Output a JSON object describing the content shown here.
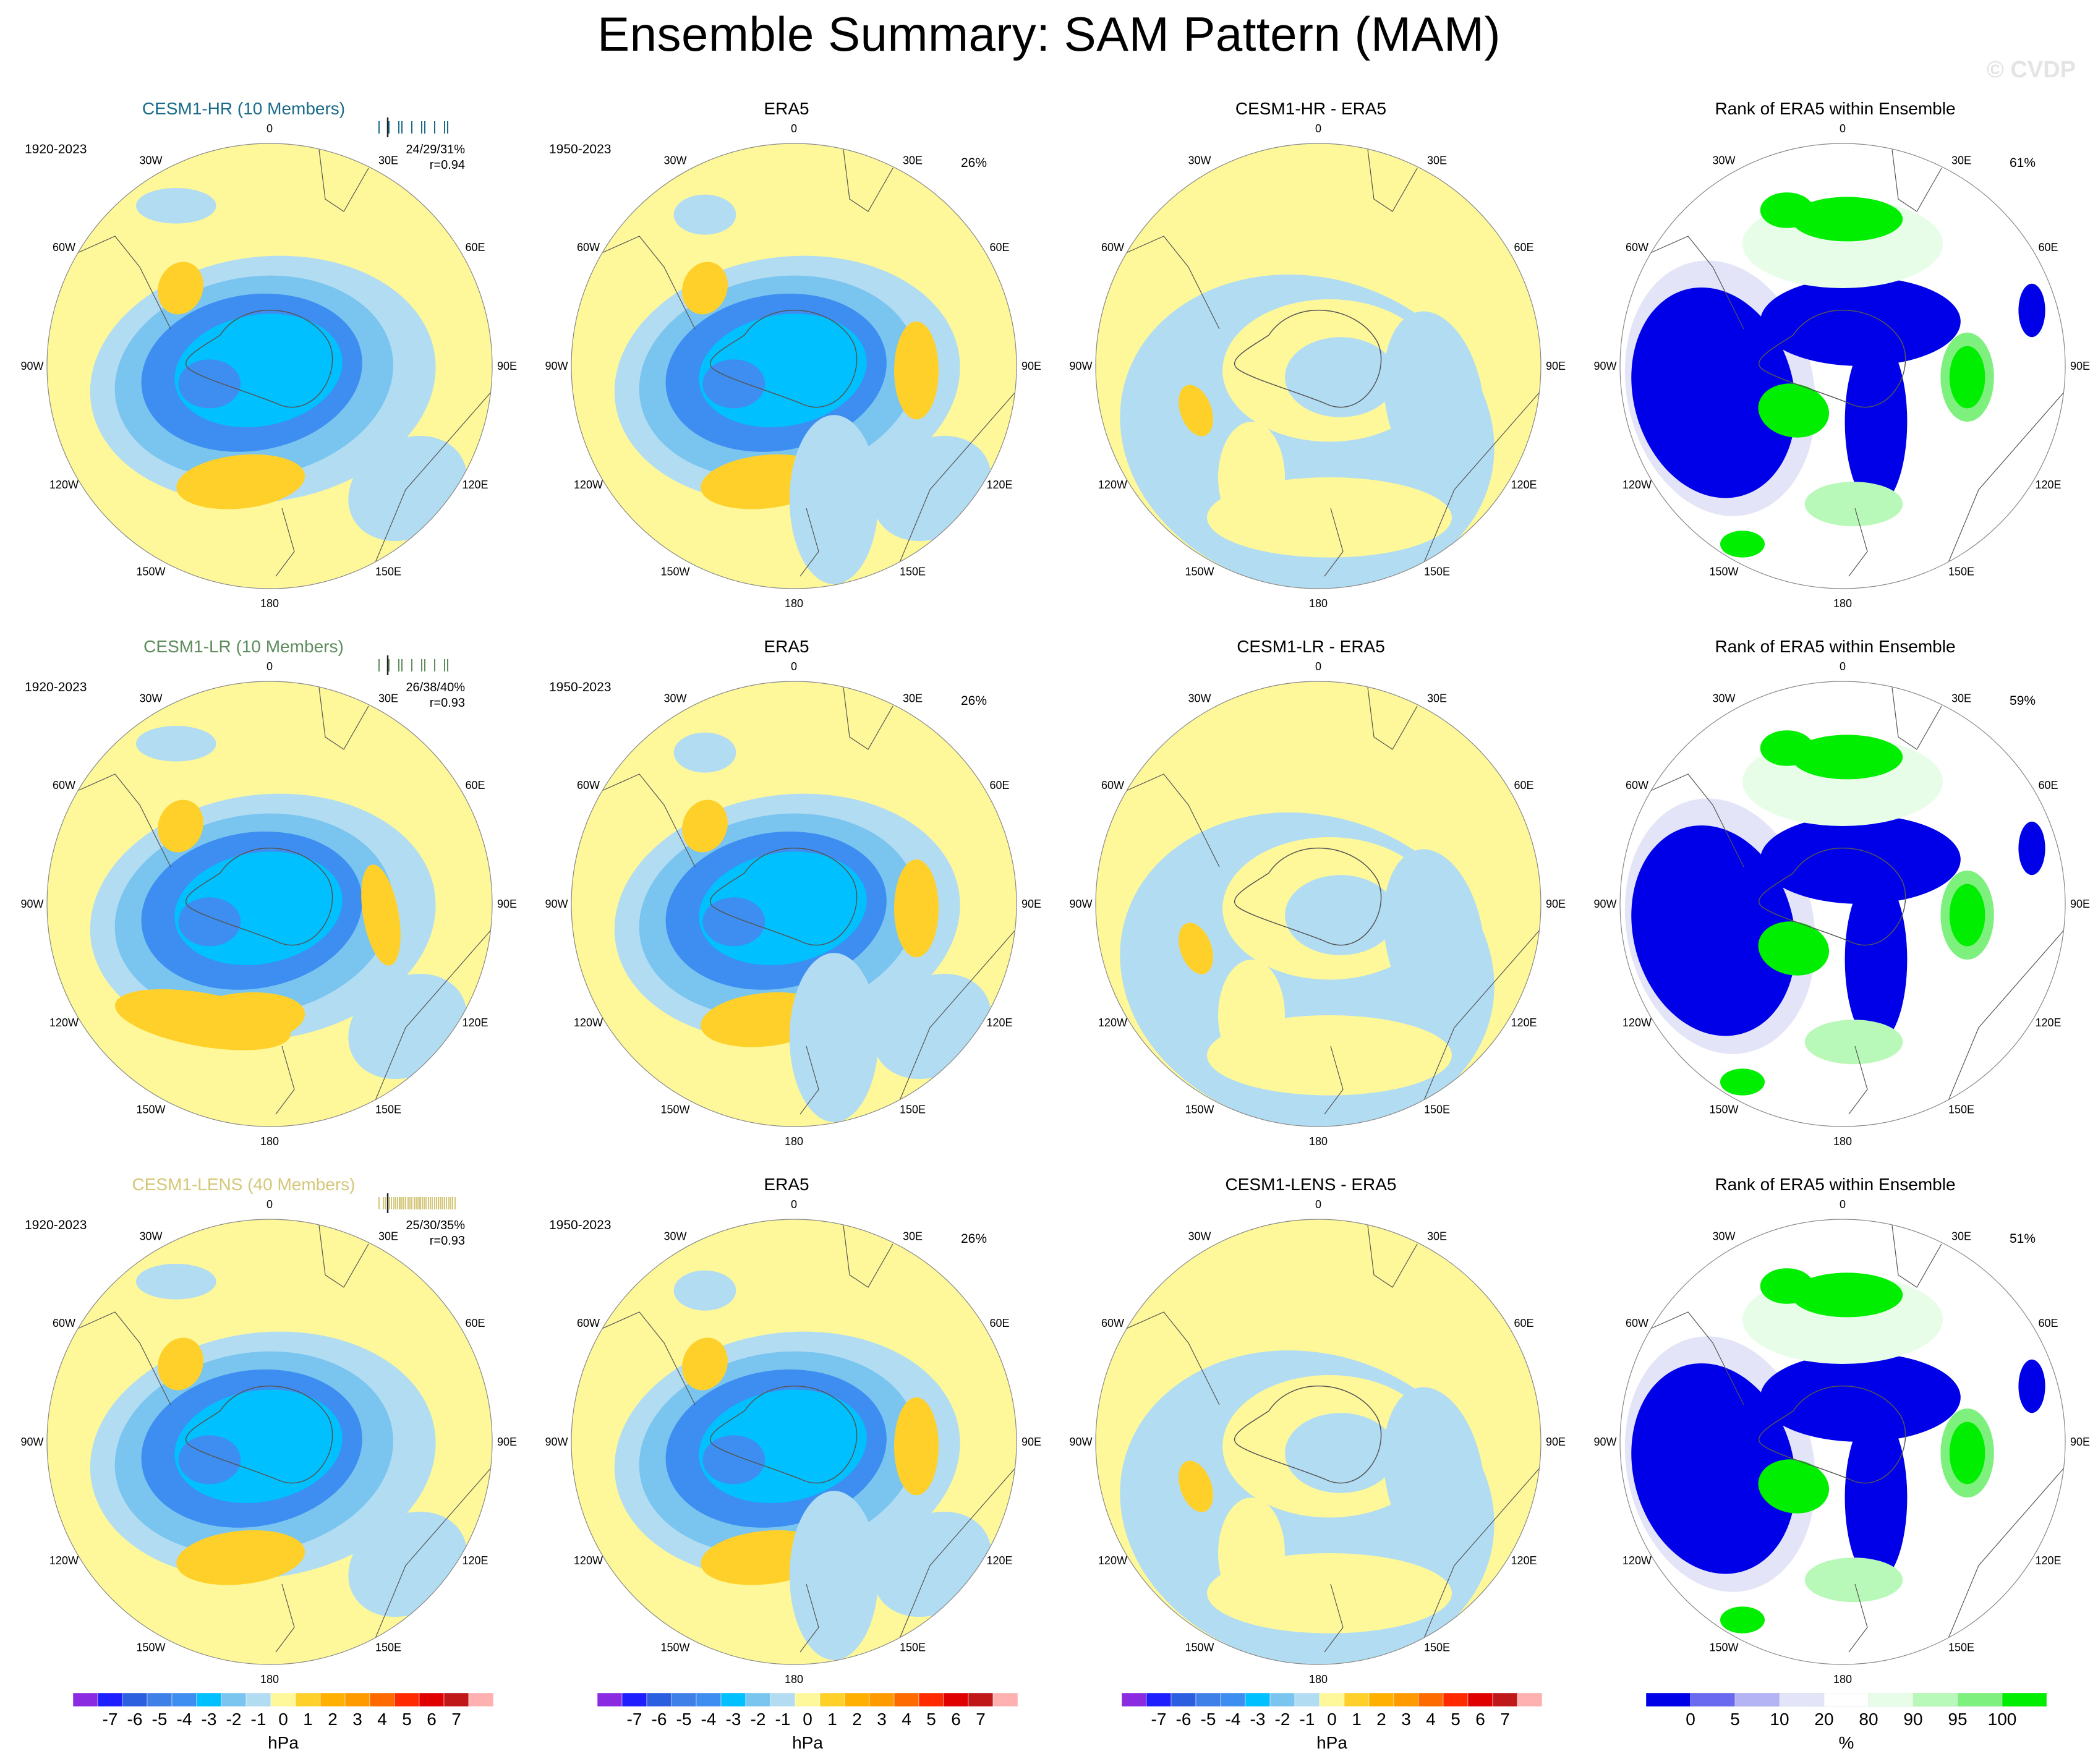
{
  "title": "Ensemble Summary: SAM Pattern (MAM)",
  "watermark": "© CVDP",
  "longitude_labels": [
    "0",
    "30E",
    "60E",
    "90E",
    "120E",
    "150E",
    "180",
    "150W",
    "120W",
    "90W",
    "60W",
    "30W"
  ],
  "colors": {
    "c_neg7": "#8a2be2",
    "c_neg6": "#1e1eff",
    "c_neg5": "#2b5fe0",
    "c_neg4": "#3f7fe8",
    "c_neg3": "#3d8ef0",
    "c_neg2": "#00c0ff",
    "c_neg1": "#7ac4f0",
    "c_neg0": "#b2dcf2",
    "c_pos0": "#fff89a",
    "c_pos1": "#ffd02a",
    "c_pos2": "#ffb000",
    "c_pos3": "#ff9a00",
    "c_pos4": "#ff6a00",
    "c_pos5": "#ff2a00",
    "c_pos6": "#e00000",
    "c_pos7": "#c01818",
    "c_pos8": "#ffb0b0",
    "r_0": "#0000e8",
    "r_5": "#6a6af0",
    "r_10": "#b4b4f4",
    "r_20": "#e4e4f8",
    "r_mid": "#ffffff",
    "r_80": "#e8fde8",
    "r_90": "#b8f8b8",
    "r_95": "#7ef07e",
    "r_100": "#00ee00",
    "hr_color": "#1a6a8a",
    "lr_color": "#5e8c5e",
    "lens_color": "#d4c77a"
  },
  "colorbar_hpa": {
    "labels": [
      "-7",
      "-6",
      "-5",
      "-4",
      "-3",
      "-2",
      "-1",
      "0",
      "1",
      "2",
      "3",
      "4",
      "5",
      "6",
      "7"
    ],
    "unit": "hPa"
  },
  "colorbar_rank": {
    "labels": [
      "0",
      "5",
      "10",
      "20",
      "80",
      "90",
      "95",
      "100"
    ],
    "unit": "%"
  },
  "rows": [
    {
      "model": "CESM1-HR (10 Members)",
      "model_period": "1920-2023",
      "stats_pct": "24/29/31%",
      "stats_r": "r=0.94",
      "obs_title": "ERA5",
      "obs_period": "1950-2023",
      "obs_pct": "26%",
      "diff_title": "CESM1-HR - ERA5",
      "rank_title": "Rank of ERA5 within Ensemble",
      "rank_pct": "61%"
    },
    {
      "model": "CESM1-LR (10 Members)",
      "model_period": "1920-2023",
      "stats_pct": "26/38/40%",
      "stats_r": "r=0.93",
      "obs_title": "ERA5",
      "obs_period": "1950-2023",
      "obs_pct": "26%",
      "diff_title": "CESM1-LR - ERA5",
      "rank_title": "Rank of ERA5 within Ensemble",
      "rank_pct": "59%"
    },
    {
      "model": "CESM1-LENS (40 Members)",
      "model_period": "1920-2023",
      "stats_pct": "25/30/35%",
      "stats_r": "r=0.93",
      "obs_title": "ERA5",
      "obs_period": "1950-2023",
      "obs_pct": "26%",
      "diff_title": "CESM1-LENS - ERA5",
      "rank_title": "Rank of ERA5 within Ensemble",
      "rank_pct": "51%"
    }
  ],
  "chart_data": {
    "type": "polar-stereographic contour maps (3x4 grid)",
    "title": "Ensemble Summary: SAM Pattern (MAM)",
    "variable": "sea level pressure regression pattern",
    "units": "hPa",
    "contour_levels_hpa": [
      -7,
      -6,
      -5,
      -4,
      -3,
      -2,
      -1,
      0,
      1,
      2,
      3,
      4,
      5,
      6,
      7
    ],
    "rank_levels_percent": [
      0,
      5,
      10,
      20,
      80,
      90,
      95,
      100
    ],
    "panels": [
      {
        "row": 1,
        "col": 1,
        "title": "CESM1-HR (10 Members)",
        "period": "1920-2023",
        "pattern_corr": 0.94,
        "pct_var": "24/29/31%"
      },
      {
        "row": 1,
        "col": 2,
        "title": "ERA5",
        "period": "1950-2023",
        "pct_var": "26%"
      },
      {
        "row": 1,
        "col": 3,
        "title": "CESM1-HR - ERA5"
      },
      {
        "row": 1,
        "col": 4,
        "title": "Rank of ERA5 within Ensemble",
        "pct": "61%"
      },
      {
        "row": 2,
        "col": 1,
        "title": "CESM1-LR (10 Members)",
        "period": "1920-2023",
        "pattern_corr": 0.93,
        "pct_var": "26/38/40%"
      },
      {
        "row": 2,
        "col": 2,
        "title": "ERA5",
        "period": "1950-2023",
        "pct_var": "26%"
      },
      {
        "row": 2,
        "col": 3,
        "title": "CESM1-LR - ERA5"
      },
      {
        "row": 2,
        "col": 4,
        "title": "Rank of ERA5 within Ensemble",
        "pct": "59%"
      },
      {
        "row": 3,
        "col": 1,
        "title": "CESM1-LENS (40 Members)",
        "period": "1920-2023",
        "pattern_corr": 0.93,
        "pct_var": "25/30/35%"
      },
      {
        "row": 3,
        "col": 2,
        "title": "ERA5",
        "period": "1950-2023",
        "pct_var": "26%"
      },
      {
        "row": 3,
        "col": 3,
        "title": "CESM1-LENS - ERA5"
      },
      {
        "row": 3,
        "col": 4,
        "title": "Rank of ERA5 within Ensemble",
        "pct": "51%"
      }
    ]
  }
}
